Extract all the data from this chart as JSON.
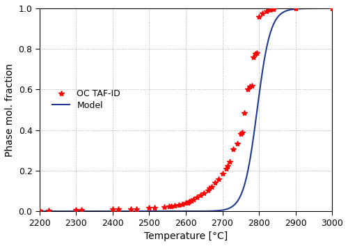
{
  "title": "",
  "xlabel": "Temperature [°C]",
  "ylabel": "Phase mol. fraction",
  "xlim": [
    2200,
    3000
  ],
  "ylim": [
    0,
    1
  ],
  "xticks": [
    2200,
    2300,
    2400,
    2500,
    2600,
    2700,
    2800,
    2900,
    3000
  ],
  "yticks": [
    0,
    0.2,
    0.4,
    0.6,
    0.8,
    1.0
  ],
  "scatter_color": "#ff0000",
  "line_color": "#1f3a8f",
  "scatter_label": "OC TAF-ID",
  "line_label": "Model",
  "scatter_marker": "*",
  "scatter_size": 40,
  "line_width": 1.5,
  "grid_color": "#aaaaaa",
  "grid_style": ":",
  "background_color": "#ffffff",
  "scatter_x": [
    2200,
    2225,
    2300,
    2315,
    2400,
    2415,
    2450,
    2465,
    2500,
    2515,
    2540,
    2555,
    2560,
    2570,
    2580,
    2590,
    2600,
    2605,
    2610,
    2615,
    2620,
    2630,
    2640,
    2650,
    2660,
    2665,
    2670,
    2680,
    2690,
    2700,
    2710,
    2715,
    2720,
    2730,
    2740,
    2750,
    2755,
    2760,
    2770,
    2775,
    2780,
    2785,
    2790,
    2795,
    2800,
    2810,
    2820,
    2830,
    2840,
    2900,
    3000
  ],
  "scatter_y": [
    0.005,
    0.005,
    0.008,
    0.008,
    0.01,
    0.01,
    0.01,
    0.01,
    0.018,
    0.018,
    0.022,
    0.025,
    0.025,
    0.028,
    0.032,
    0.035,
    0.04,
    0.043,
    0.048,
    0.052,
    0.058,
    0.068,
    0.078,
    0.09,
    0.105,
    0.112,
    0.12,
    0.14,
    0.16,
    0.185,
    0.21,
    0.225,
    0.245,
    0.305,
    0.335,
    0.38,
    0.39,
    0.485,
    0.6,
    0.615,
    0.62,
    0.76,
    0.775,
    0.78,
    0.96,
    0.975,
    0.985,
    0.992,
    0.996,
    1.0,
    1.0
  ],
  "model_T0": 2795,
  "model_k": 0.055,
  "model_n": 3.5
}
